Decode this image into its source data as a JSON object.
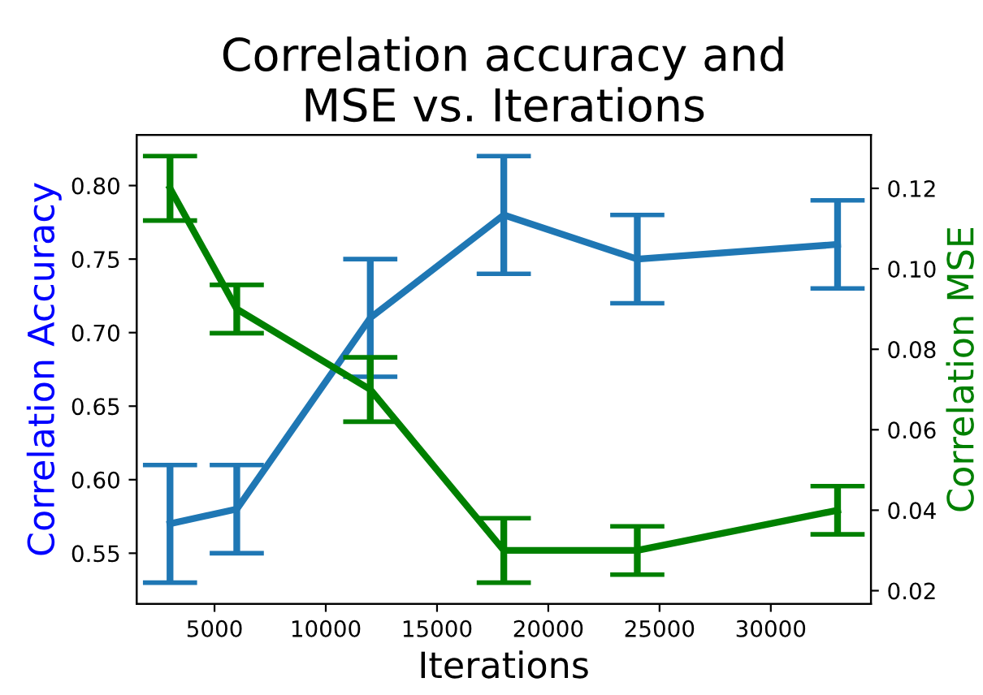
{
  "chart_data": {
    "type": "line",
    "title": "Correlation accuracy and\nMSE vs. Iterations",
    "xlabel": "Iterations",
    "ylabel": "Correlation Accuracy",
    "y2label": "Correlation MSE",
    "x": [
      3000,
      6000,
      12000,
      18000,
      24000,
      33000
    ],
    "series": [
      {
        "color": "#1f77b4",
        "values": [
          0.57,
          0.58,
          0.71,
          0.78,
          0.75,
          0.76
        ],
        "errors": [
          0.04,
          0.03,
          0.04,
          0.04,
          0.03,
          0.03
        ]
      },
      {
        "color": "#008000",
        "axis": "y2",
        "values": [
          0.12,
          0.09,
          0.07,
          0.03,
          0.03,
          0.04
        ],
        "errors": [
          0.008,
          0.006,
          0.008,
          0.008,
          0.006,
          0.006
        ]
      }
    ],
    "xlim": [
      1500,
      34500
    ],
    "xticks": [
      5000,
      10000,
      15000,
      20000,
      25000,
      30000
    ],
    "ylim": [
      0.5155,
      0.8345
    ],
    "yticks": [
      {
        "value": 0.55,
        "label": "0.55"
      },
      {
        "value": 0.6,
        "label": "0.60"
      },
      {
        "value": 0.65,
        "label": "0.65"
      },
      {
        "value": 0.7,
        "label": "0.70"
      },
      {
        "value": 0.75,
        "label": "0.75"
      },
      {
        "value": 0.8,
        "label": "0.80"
      }
    ],
    "y2lim": [
      0.0167,
      0.1333
    ],
    "y2ticks": [
      0.02,
      0.04,
      0.06,
      0.08,
      {
        "value": 0.1,
        "label": "0.10"
      },
      0.12
    ],
    "grid": false,
    "legend": false,
    "marker": "none",
    "line_style": "solid"
  }
}
